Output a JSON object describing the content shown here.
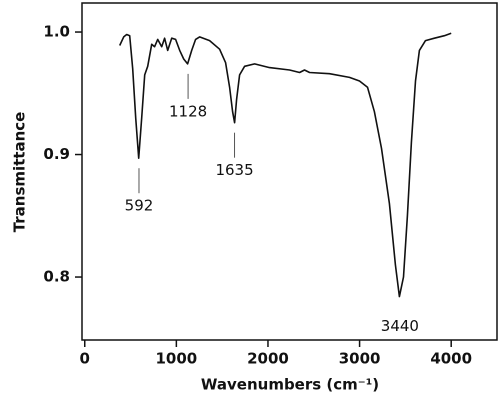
{
  "chart_data": {
    "type": "line",
    "x_label": "Wavenumbers (cm⁻¹)",
    "y_label": "Transmittance",
    "xlim": [
      -30,
      4500
    ],
    "ylim": [
      0.7486,
      1.0237
    ],
    "xticks": [
      0,
      1000,
      2000,
      3000,
      4000
    ],
    "yticks": [
      {
        "value": 0.8,
        "label": "0.8"
      },
      {
        "value": 0.9,
        "label": "0.9"
      },
      {
        "value": 1.0,
        "label": "1.0"
      }
    ],
    "series": [
      {
        "color": "#111111",
        "x": [
          382,
          425,
          458,
          491,
          523,
          556,
          589,
          622,
          654,
          687,
          731,
          763,
          796,
          840,
          872,
          905,
          949,
          992,
          1036,
          1080,
          1123,
          1167,
          1210,
          1254,
          1363,
          1472,
          1538,
          1581,
          1614,
          1636,
          1658,
          1690,
          1745,
          1854,
          2017,
          2236,
          2345,
          2399,
          2454,
          2672,
          2890,
          2999,
          3086,
          3162,
          3239,
          3326,
          3391,
          3435,
          3479,
          3522,
          3566,
          3610,
          3653,
          3719,
          3817,
          3926,
          4000
        ],
        "values": [
          0.989,
          0.996,
          0.998,
          0.997,
          0.97,
          0.93,
          0.897,
          0.93,
          0.965,
          0.972,
          0.99,
          0.988,
          0.994,
          0.988,
          0.995,
          0.985,
          0.995,
          0.994,
          0.985,
          0.978,
          0.974,
          0.985,
          0.994,
          0.996,
          0.993,
          0.986,
          0.975,
          0.955,
          0.935,
          0.926,
          0.945,
          0.965,
          0.972,
          0.974,
          0.971,
          0.969,
          0.967,
          0.969,
          0.967,
          0.966,
          0.963,
          0.96,
          0.955,
          0.935,
          0.905,
          0.86,
          0.81,
          0.784,
          0.8,
          0.85,
          0.91,
          0.96,
          0.985,
          0.993,
          0.995,
          0.997,
          0.999
        ]
      }
    ],
    "annotations": [
      {
        "text": "592",
        "x": 592,
        "y": 0.897,
        "leader": true
      },
      {
        "text": "1128",
        "x": 1128,
        "y": 0.974,
        "leader": true
      },
      {
        "text": "1635",
        "x": 1635,
        "y": 0.926,
        "leader": true
      },
      {
        "text": "3440",
        "x": 3440,
        "y": 0.784,
        "leader": false
      }
    ]
  }
}
